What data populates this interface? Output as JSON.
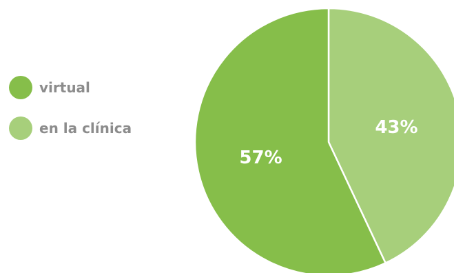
{
  "chart_data": {
    "type": "pie",
    "categories": [
      "virtual",
      "en la clínica"
    ],
    "values": [
      57,
      43
    ],
    "labels": [
      "57%",
      "43%"
    ],
    "colors": [
      "#86be4a",
      "#a7cf7b"
    ],
    "legend_position": "left",
    "start_angle": "12 o'clock",
    "direction": "clockwise, 'en la clínica' first"
  }
}
